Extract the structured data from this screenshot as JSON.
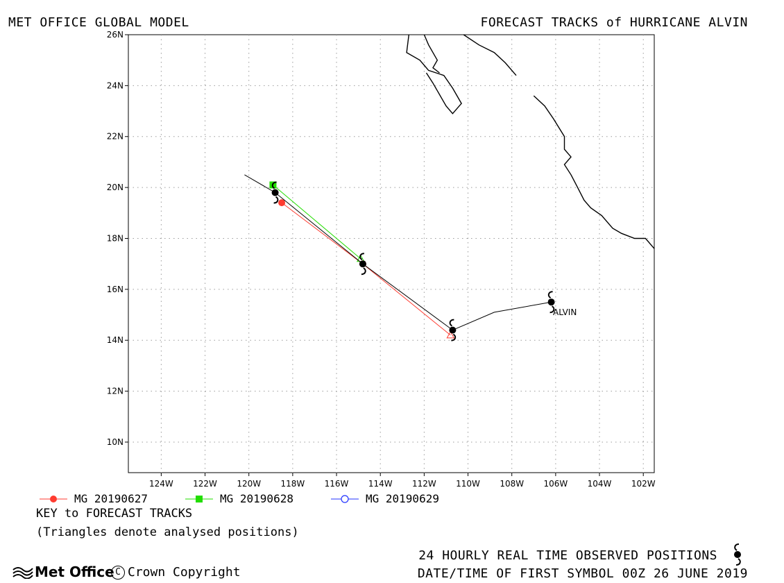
{
  "header": {
    "left_title": "MET OFFICE GLOBAL MODEL",
    "right_title": "FORECAST TRACKS of HURRICANE ALVIN"
  },
  "map": {
    "lon_range": [
      -125.5,
      -101.5
    ],
    "lat_range": [
      8.8,
      26
    ],
    "lat_ticks": [
      "26N",
      "24N",
      "22N",
      "20N",
      "18N",
      "16N",
      "14N",
      "12N",
      "10N"
    ],
    "lon_ticks": [
      "124W",
      "122W",
      "120W",
      "118W",
      "116W",
      "114W",
      "112W",
      "110W",
      "108W",
      "106W",
      "104W",
      "102W"
    ],
    "storm_label": "ALVIN",
    "observed_track": [
      [
        -106.2,
        15.5
      ],
      [
        -108.8,
        15.1
      ],
      [
        -110.7,
        14.4
      ],
      [
        -114.8,
        17.0
      ],
      [
        -118.8,
        19.8
      ],
      [
        -120.2,
        20.5
      ]
    ],
    "observed_symbols": [
      [
        -106.2,
        15.5
      ],
      [
        -110.7,
        14.4
      ],
      [
        -114.8,
        17.0
      ],
      [
        -118.8,
        19.8
      ]
    ],
    "coastline": [
      [
        [
          -112.7,
          26.0
        ],
        [
          -112.8,
          25.3
        ],
        [
          -112.2,
          25.0
        ],
        [
          -112.0,
          24.8
        ],
        [
          -111.8,
          24.6
        ],
        [
          -111.1,
          24.4
        ],
        [
          -110.7,
          23.9
        ],
        [
          -110.3,
          23.3
        ],
        [
          -110.7,
          22.9
        ],
        [
          -111.0,
          23.2
        ],
        [
          -111.4,
          23.8
        ],
        [
          -111.6,
          24.1
        ],
        [
          -111.9,
          24.5
        ]
      ],
      [
        [
          -112.0,
          26.0
        ],
        [
          -111.8,
          25.6
        ],
        [
          -111.4,
          25.0
        ],
        [
          -111.6,
          24.7
        ],
        [
          -111.3,
          24.5
        ]
      ],
      [
        [
          -110.2,
          26.0
        ],
        [
          -109.5,
          25.6
        ],
        [
          -108.8,
          25.3
        ],
        [
          -108.3,
          24.9
        ],
        [
          -107.8,
          24.4
        ]
      ],
      [
        [
          -107.0,
          23.6
        ],
        [
          -106.5,
          23.2
        ],
        [
          -106.1,
          22.7
        ],
        [
          -105.6,
          22.0
        ],
        [
          -105.6,
          21.5
        ],
        [
          -105.3,
          21.2
        ],
        [
          -105.6,
          20.9
        ],
        [
          -105.3,
          20.5
        ],
        [
          -105.0,
          20.0
        ],
        [
          -104.7,
          19.5
        ],
        [
          -104.4,
          19.2
        ],
        [
          -103.9,
          18.9
        ],
        [
          -103.4,
          18.4
        ],
        [
          -103.0,
          18.2
        ],
        [
          -102.4,
          18.0
        ],
        [
          -101.9,
          18.0
        ],
        [
          -101.5,
          17.6
        ]
      ]
    ]
  },
  "forecasts": [
    {
      "name": "MG 20190627",
      "color": "#ff3b30",
      "marker": "filled-circle",
      "points": [
        [
          -110.8,
          14.2
        ],
        [
          -114.8,
          17.0
        ],
        [
          -118.5,
          19.4
        ]
      ]
    },
    {
      "name": "MG 20190628",
      "color": "#22dd00",
      "marker": "filled-square",
      "points": [
        [
          -114.9,
          17.2
        ],
        [
          -118.9,
          20.1
        ]
      ]
    },
    {
      "name": "MG 20190629",
      "color": "#2233ff",
      "marker": "open-circle",
      "points": []
    }
  ],
  "key": {
    "title": "KEY to FORECAST TRACKS",
    "note": "(Triangles denote analysed positions)"
  },
  "footer": {
    "observed_text": "24 HOURLY REAL TIME OBSERVED POSITIONS",
    "date_text": "DATE/TIME OF FIRST SYMBOL 00Z 26 JUNE 2019",
    "logo_text": "Met Office",
    "copyright_text": "Crown Copyright"
  },
  "icons": {
    "observed_symbol": "hurricane-icon",
    "logo": "met-office-wave-icon"
  }
}
